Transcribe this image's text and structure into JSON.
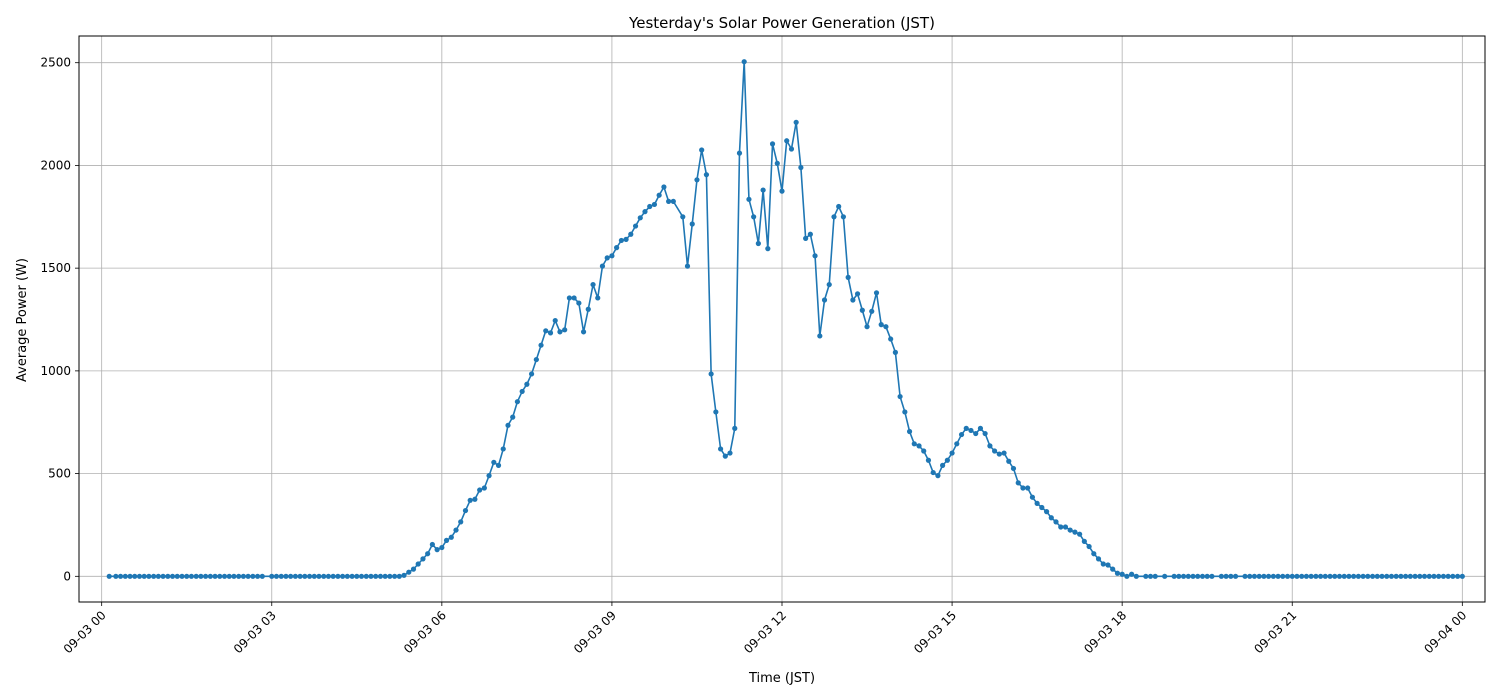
{
  "chart_data": {
    "type": "line",
    "title": "Yesterday's Solar Power Generation (JST)",
    "xlabel": "Time (JST)",
    "ylabel": "Average Power (W)",
    "xlim_hours": [
      -0.4,
      24.4
    ],
    "ylim": [
      -125,
      2630
    ],
    "x_ticks": [
      {
        "hour": 0,
        "label": "09-03 00"
      },
      {
        "hour": 3,
        "label": "09-03 03"
      },
      {
        "hour": 6,
        "label": "09-03 06"
      },
      {
        "hour": 9,
        "label": "09-03 09"
      },
      {
        "hour": 12,
        "label": "09-03 12"
      },
      {
        "hour": 15,
        "label": "09-03 15"
      },
      {
        "hour": 18,
        "label": "09-03 18"
      },
      {
        "hour": 21,
        "label": "09-03 21"
      },
      {
        "hour": 24,
        "label": "09-04 00"
      }
    ],
    "y_ticks": [
      0,
      500,
      1000,
      1500,
      2000,
      2500
    ],
    "grid": true,
    "series": [
      {
        "name": "Average Power (W)",
        "color": "#1f77b4",
        "points": [
          [
            0.133,
            0
          ],
          [
            0.25,
            0
          ],
          [
            0.333,
            0
          ],
          [
            0.417,
            0
          ],
          [
            0.5,
            0
          ],
          [
            0.583,
            0
          ],
          [
            0.667,
            0
          ],
          [
            0.75,
            0
          ],
          [
            0.833,
            0
          ],
          [
            0.917,
            0
          ],
          [
            1.0,
            0
          ],
          [
            1.083,
            0
          ],
          [
            1.167,
            0
          ],
          [
            1.25,
            0
          ],
          [
            1.333,
            0
          ],
          [
            1.417,
            0
          ],
          [
            1.5,
            0
          ],
          [
            1.583,
            0
          ],
          [
            1.667,
            0
          ],
          [
            1.75,
            0
          ],
          [
            1.833,
            0
          ],
          [
            1.917,
            0
          ],
          [
            2.0,
            0
          ],
          [
            2.083,
            0
          ],
          [
            2.167,
            0
          ],
          [
            2.25,
            0
          ],
          [
            2.333,
            0
          ],
          [
            2.417,
            0
          ],
          [
            2.5,
            0
          ],
          [
            2.583,
            0
          ],
          [
            2.667,
            0
          ],
          [
            2.75,
            0
          ],
          [
            2.833,
            0
          ],
          [
            3.0,
            0
          ],
          [
            3.083,
            0
          ],
          [
            3.167,
            0
          ],
          [
            3.25,
            0
          ],
          [
            3.333,
            0
          ],
          [
            3.417,
            0
          ],
          [
            3.5,
            0
          ],
          [
            3.583,
            0
          ],
          [
            3.667,
            0
          ],
          [
            3.75,
            0
          ],
          [
            3.833,
            0
          ],
          [
            3.917,
            0
          ],
          [
            4.0,
            0
          ],
          [
            4.083,
            0
          ],
          [
            4.167,
            0
          ],
          [
            4.25,
            0
          ],
          [
            4.333,
            0
          ],
          [
            4.417,
            0
          ],
          [
            4.5,
            0
          ],
          [
            4.583,
            0
          ],
          [
            4.667,
            0
          ],
          [
            4.75,
            0
          ],
          [
            4.833,
            0
          ],
          [
            4.917,
            0
          ],
          [
            5.0,
            0
          ],
          [
            5.083,
            0
          ],
          [
            5.167,
            0
          ],
          [
            5.25,
            0
          ],
          [
            5.333,
            5
          ],
          [
            5.417,
            20
          ],
          [
            5.5,
            35
          ],
          [
            5.583,
            60
          ],
          [
            5.667,
            85
          ],
          [
            5.75,
            110
          ],
          [
            5.833,
            155
          ],
          [
            5.917,
            130
          ],
          [
            6.0,
            140
          ],
          [
            6.083,
            175
          ],
          [
            6.167,
            190
          ],
          [
            6.25,
            225
          ],
          [
            6.333,
            265
          ],
          [
            6.417,
            320
          ],
          [
            6.5,
            370
          ],
          [
            6.583,
            375
          ],
          [
            6.667,
            420
          ],
          [
            6.75,
            430
          ],
          [
            6.833,
            490
          ],
          [
            6.917,
            555
          ],
          [
            7.0,
            540
          ],
          [
            7.083,
            620
          ],
          [
            7.167,
            735
          ],
          [
            7.25,
            775
          ],
          [
            7.333,
            850
          ],
          [
            7.417,
            900
          ],
          [
            7.5,
            935
          ],
          [
            7.583,
            985
          ],
          [
            7.667,
            1055
          ],
          [
            7.75,
            1125
          ],
          [
            7.833,
            1195
          ],
          [
            7.917,
            1185
          ],
          [
            8.0,
            1245
          ],
          [
            8.083,
            1190
          ],
          [
            8.167,
            1200
          ],
          [
            8.25,
            1355
          ],
          [
            8.333,
            1355
          ],
          [
            8.417,
            1330
          ],
          [
            8.5,
            1190
          ],
          [
            8.583,
            1300
          ],
          [
            8.667,
            1420
          ],
          [
            8.75,
            1355
          ],
          [
            8.833,
            1510
          ],
          [
            8.917,
            1550
          ],
          [
            9.0,
            1560
          ],
          [
            9.083,
            1600
          ],
          [
            9.167,
            1635
          ],
          [
            9.25,
            1640
          ],
          [
            9.333,
            1665
          ],
          [
            9.417,
            1705
          ],
          [
            9.5,
            1745
          ],
          [
            9.583,
            1775
          ],
          [
            9.667,
            1800
          ],
          [
            9.75,
            1810
          ],
          [
            9.833,
            1855
          ],
          [
            9.917,
            1895
          ],
          [
            10.0,
            1825
          ],
          [
            10.083,
            1825
          ],
          [
            10.25,
            1750
          ],
          [
            10.333,
            1510
          ],
          [
            10.417,
            1715
          ],
          [
            10.5,
            1930
          ],
          [
            10.583,
            2075
          ],
          [
            10.667,
            1955
          ],
          [
            10.75,
            985
          ],
          [
            10.833,
            800
          ],
          [
            10.917,
            620
          ],
          [
            11.0,
            585
          ],
          [
            11.083,
            600
          ],
          [
            11.167,
            720
          ],
          [
            11.25,
            2060
          ],
          [
            11.333,
            2505
          ],
          [
            11.417,
            1835
          ],
          [
            11.5,
            1750
          ],
          [
            11.583,
            1620
          ],
          [
            11.667,
            1880
          ],
          [
            11.75,
            1595
          ],
          [
            11.833,
            2105
          ],
          [
            11.917,
            2010
          ],
          [
            12.0,
            1875
          ],
          [
            12.083,
            2120
          ],
          [
            12.167,
            2080
          ],
          [
            12.25,
            2210
          ],
          [
            12.333,
            1990
          ],
          [
            12.417,
            1645
          ],
          [
            12.5,
            1665
          ],
          [
            12.583,
            1560
          ],
          [
            12.667,
            1170
          ],
          [
            12.75,
            1345
          ],
          [
            12.833,
            1420
          ],
          [
            12.917,
            1750
          ],
          [
            13.0,
            1800
          ],
          [
            13.083,
            1750
          ],
          [
            13.167,
            1455
          ],
          [
            13.25,
            1345
          ],
          [
            13.333,
            1375
          ],
          [
            13.417,
            1295
          ],
          [
            13.5,
            1215
          ],
          [
            13.583,
            1290
          ],
          [
            13.667,
            1380
          ],
          [
            13.75,
            1225
          ],
          [
            13.833,
            1215
          ],
          [
            13.917,
            1155
          ],
          [
            14.0,
            1090
          ],
          [
            14.083,
            875
          ],
          [
            14.167,
            800
          ],
          [
            14.25,
            705
          ],
          [
            14.333,
            645
          ],
          [
            14.417,
            635
          ],
          [
            14.5,
            610
          ],
          [
            14.583,
            565
          ],
          [
            14.667,
            505
          ],
          [
            14.75,
            490
          ],
          [
            14.833,
            540
          ],
          [
            14.917,
            565
          ],
          [
            15.0,
            600
          ],
          [
            15.083,
            645
          ],
          [
            15.167,
            690
          ],
          [
            15.25,
            720
          ],
          [
            15.333,
            710
          ],
          [
            15.417,
            695
          ],
          [
            15.5,
            720
          ],
          [
            15.583,
            695
          ],
          [
            15.667,
            635
          ],
          [
            15.75,
            610
          ],
          [
            15.833,
            595
          ],
          [
            15.917,
            600
          ],
          [
            16.0,
            560
          ],
          [
            16.083,
            525
          ],
          [
            16.167,
            455
          ],
          [
            16.25,
            430
          ],
          [
            16.333,
            430
          ],
          [
            16.417,
            385
          ],
          [
            16.5,
            355
          ],
          [
            16.583,
            335
          ],
          [
            16.667,
            315
          ],
          [
            16.75,
            285
          ],
          [
            16.833,
            265
          ],
          [
            16.917,
            240
          ],
          [
            17.0,
            240
          ],
          [
            17.083,
            225
          ],
          [
            17.167,
            215
          ],
          [
            17.25,
            205
          ],
          [
            17.333,
            170
          ],
          [
            17.417,
            145
          ],
          [
            17.5,
            110
          ],
          [
            17.583,
            85
          ],
          [
            17.667,
            60
          ],
          [
            17.75,
            55
          ],
          [
            17.833,
            35
          ],
          [
            17.917,
            15
          ],
          [
            18.0,
            10
          ],
          [
            18.083,
            0
          ],
          [
            18.167,
            10
          ],
          [
            18.25,
            0
          ],
          [
            18.417,
            0
          ],
          [
            18.5,
            0
          ],
          [
            18.583,
            0
          ],
          [
            18.75,
            0
          ],
          [
            18.917,
            0
          ],
          [
            19.0,
            0
          ],
          [
            19.083,
            0
          ],
          [
            19.167,
            0
          ],
          [
            19.25,
            0
          ],
          [
            19.333,
            0
          ],
          [
            19.417,
            0
          ],
          [
            19.5,
            0
          ],
          [
            19.583,
            0
          ],
          [
            19.75,
            0
          ],
          [
            19.833,
            0
          ],
          [
            19.917,
            0
          ],
          [
            20.0,
            0
          ],
          [
            20.167,
            0
          ],
          [
            20.25,
            0
          ],
          [
            20.333,
            0
          ],
          [
            20.417,
            0
          ],
          [
            20.5,
            0
          ],
          [
            20.583,
            0
          ],
          [
            20.667,
            0
          ],
          [
            20.75,
            0
          ],
          [
            20.833,
            0
          ],
          [
            20.917,
            0
          ],
          [
            21.0,
            0
          ],
          [
            21.083,
            0
          ],
          [
            21.167,
            0
          ],
          [
            21.25,
            0
          ],
          [
            21.333,
            0
          ],
          [
            21.417,
            0
          ],
          [
            21.5,
            0
          ],
          [
            21.583,
            0
          ],
          [
            21.667,
            0
          ],
          [
            21.75,
            0
          ],
          [
            21.833,
            0
          ],
          [
            21.917,
            0
          ],
          [
            22.0,
            0
          ],
          [
            22.083,
            0
          ],
          [
            22.167,
            0
          ],
          [
            22.25,
            0
          ],
          [
            22.333,
            0
          ],
          [
            22.417,
            0
          ],
          [
            22.5,
            0
          ],
          [
            22.583,
            0
          ],
          [
            22.667,
            0
          ],
          [
            22.75,
            0
          ],
          [
            22.833,
            0
          ],
          [
            22.917,
            0
          ],
          [
            23.0,
            0
          ],
          [
            23.083,
            0
          ],
          [
            23.167,
            0
          ],
          [
            23.25,
            0
          ],
          [
            23.333,
            0
          ],
          [
            23.417,
            0
          ],
          [
            23.5,
            0
          ],
          [
            23.583,
            0
          ],
          [
            23.667,
            0
          ],
          [
            23.75,
            0
          ],
          [
            23.833,
            0
          ],
          [
            23.917,
            0
          ],
          [
            24.0,
            0
          ]
        ]
      }
    ]
  }
}
